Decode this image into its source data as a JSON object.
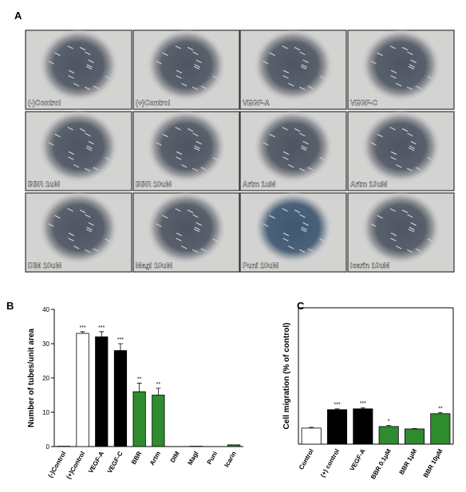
{
  "panel_labels": [
    "A",
    "B",
    "C"
  ],
  "images": [
    {
      "label": "(-)Control"
    },
    {
      "label": "(+)Control"
    },
    {
      "label": "VEGF-A"
    },
    {
      "label": "VEGF-C"
    },
    {
      "label": "BBR 1uM"
    },
    {
      "label": "BBR 10uM"
    },
    {
      "label": "Artm 1uM"
    },
    {
      "label": "Artm 10uM"
    },
    {
      "label": "DIM 10uM"
    },
    {
      "label": "Magl 10uM"
    },
    {
      "label": "Puni 10uM"
    },
    {
      "label": "Icarin 10uM"
    }
  ],
  "chart_data": [
    {
      "type": "bar",
      "y_label": "Number of tubes/unit area",
      "categories": [
        "(-)Control",
        "(+)Control",
        "VEGF-A",
        "VEGF-C",
        "BBR",
        "Artm",
        "DIM",
        "Magl",
        "Puni",
        "Icarin"
      ],
      "values": [
        0.1,
        33,
        32,
        28,
        16,
        15,
        0,
        0.1,
        0,
        0.5
      ],
      "errors": [
        0,
        0.5,
        1.5,
        2,
        2.5,
        2,
        0,
        0,
        0,
        0
      ],
      "colors": [
        "#ffffff",
        "#ffffff",
        "#000000",
        "#000000",
        "#2e8b2e",
        "#2e8b2e",
        "#2e8b2e",
        "#2e8b2e",
        "#2e8b2e",
        "#2e8b2e"
      ],
      "annotations": [
        "***",
        "***",
        "***",
        "**",
        "**"
      ],
      "annotation_index": [
        1,
        2,
        3,
        4,
        5
      ],
      "ylim": [
        0,
        40
      ],
      "yticks": [
        0,
        10,
        20,
        30,
        40
      ]
    },
    {
      "type": "bar",
      "y_label": "Cell migration (% of control)",
      "categories": [
        "Control",
        "(+) control",
        "VEGF-A",
        "BBR 0.1μM",
        "BBR 1μM",
        "BBR 10μM"
      ],
      "values": [
        100,
        123,
        124,
        102,
        99,
        118
      ],
      "errors": [
        1,
        1,
        1.5,
        1.5,
        0.5,
        1.5
      ],
      "colors": [
        "#ffffff",
        "#000000",
        "#000000",
        "#2e8b2e",
        "#2e8b2e",
        "#2e8b2e"
      ],
      "annotations": [
        "***",
        "***",
        "*",
        "**"
      ],
      "annotation_index": [
        1,
        2,
        3,
        5
      ],
      "ylim": [
        80,
        250
      ]
    }
  ]
}
